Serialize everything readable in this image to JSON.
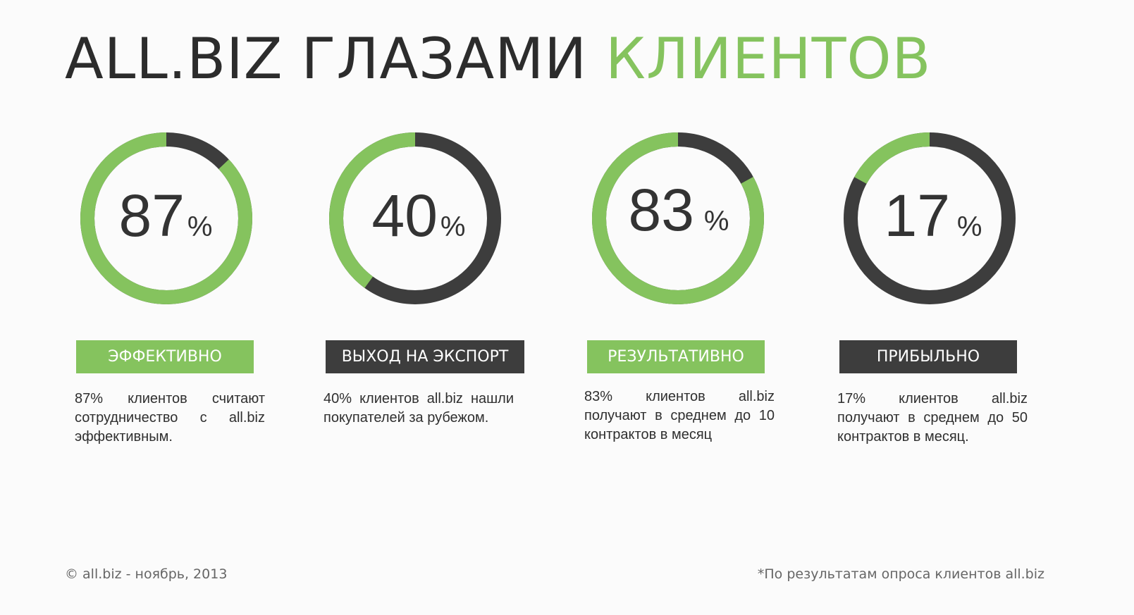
{
  "header": {
    "title_part1": "ALL.BIZ",
    "title_part2": "ГЛАЗАМИ",
    "title_part3": "КЛИЕНТОВ"
  },
  "colors": {
    "accent_green": "#85c35e",
    "dark": "#3d3d3d",
    "text": "#333333"
  },
  "chart_data": {
    "type": "donut",
    "stats": [
      {
        "value": 87,
        "value_text": "87",
        "unit": "%",
        "label": "ЭФФЕКТИВНО",
        "label_color": "#85c35e",
        "description": "87% клиентов считают сотрудничество с all.biz эффективным."
      },
      {
        "value": 40,
        "value_text": "40",
        "unit": "%",
        "label": "ВЫХОД НА ЭКСПОРТ",
        "label_color": "#3d3d3d",
        "description": "40% клиентов all.biz нашли покупателей за рубежом."
      },
      {
        "value": 83,
        "value_text": "83",
        "unit": "%",
        "label": "РЕЗУЛЬТАТИВНО",
        "label_color": "#85c35e",
        "description": "83% клиентов all.biz получают в среднем до 10 контрактов в месяц"
      },
      {
        "value": 17,
        "value_text": "17",
        "unit": "%",
        "label": "ПРИБЫЛЬНО",
        "label_color": "#3d3d3d",
        "description": "17% клиентов all.biz получают в среднем до 50 контрактов в месяц."
      }
    ]
  },
  "footer": {
    "copyright": "© all.biz - ноябрь, 2013",
    "note": "*По результатам опроса клиентов all.biz"
  }
}
